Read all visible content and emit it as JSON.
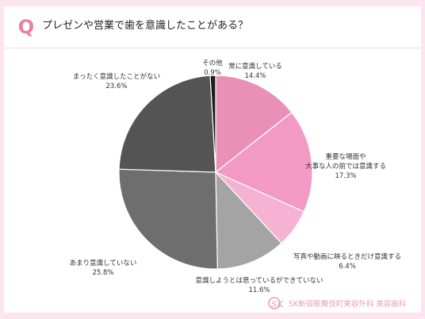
{
  "header": {
    "badge": "Q",
    "title": "プレゼンや営業で歯を意識したことがある？"
  },
  "colors": {
    "accent": "#e8829c",
    "background": "#fce5ee"
  },
  "footer": {
    "logo_text": "SK",
    "text": "SK新宿歌舞伎町美容外科 美容歯科"
  },
  "chart_data": {
    "type": "pie",
    "title": "",
    "slices": [
      {
        "label": "常に意識している",
        "value": 14.4,
        "display": "14.4%",
        "color": "#ea8fb6"
      },
      {
        "label": "重要な場面や大事な人の前では意識する",
        "label_lines": [
          "重要な場面や",
          "大事な人の前では意識する"
        ],
        "value": 17.3,
        "display": "17.3%",
        "color": "#f39ac4"
      },
      {
        "label": "写真や動画に映るときだけ意識する",
        "value": 6.4,
        "display": "6.4%",
        "color": "#f5b2d2"
      },
      {
        "label": "意識しようとは思っているができていない",
        "value": 11.6,
        "display": "11.6%",
        "color": "#a4a4a4"
      },
      {
        "label": "あまり意識していない",
        "value": 25.8,
        "display": "25.8%",
        "color": "#6e6e6e"
      },
      {
        "label": "まったく意識したことがない",
        "value": 23.6,
        "display": "23.6%",
        "color": "#545454"
      },
      {
        "label": "その他",
        "value": 0.9,
        "display": "0.9%",
        "color": "#1c1c1c"
      }
    ]
  }
}
